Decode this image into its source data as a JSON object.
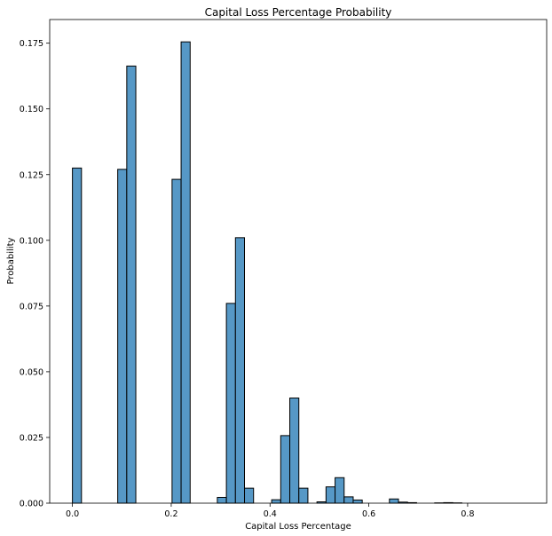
{
  "chart_data": {
    "type": "bar",
    "title": "Capital Loss Percentage Probability",
    "xlabel": "Capital Loss Percentage",
    "ylabel": "Probability",
    "xlim": [
      -0.046,
      0.96
    ],
    "ylim": [
      0,
      0.184
    ],
    "xticks": [
      0.0,
      0.2,
      0.4,
      0.6,
      0.8
    ],
    "xtick_labels": [
      "0.0",
      "0.2",
      "0.4",
      "0.6",
      "0.8"
    ],
    "yticks": [
      0,
      0.025,
      0.05,
      0.075,
      0.1,
      0.125,
      0.15,
      0.175
    ],
    "ytick_labels": [
      "0.000",
      "0.025",
      "0.050",
      "0.075",
      "0.100",
      "0.125",
      "0.150",
      "0.175"
    ],
    "bin_width": 0.01833,
    "bin_starts": [
      0.0,
      0.09167,
      0.11,
      0.20167,
      0.22,
      0.29333,
      0.31167,
      0.33,
      0.34833,
      0.40333,
      0.42167,
      0.44,
      0.45833,
      0.495,
      0.51333,
      0.53167,
      0.55,
      0.56833,
      0.64167,
      0.66,
      0.67833,
      0.73333,
      0.75167,
      0.77
    ],
    "values": [
      0.1275,
      0.127,
      0.1663,
      0.1232,
      0.1755,
      0.0022,
      0.076,
      0.101,
      0.0057,
      0.0013,
      0.0257,
      0.04,
      0.0057,
      0.0005,
      0.0062,
      0.0097,
      0.0024,
      0.0012,
      0.0016,
      0.0004,
      0.0002,
      0.0001,
      0.0002,
      0.0001
    ],
    "color": "#5698c6",
    "grid": false,
    "legend": "none"
  }
}
